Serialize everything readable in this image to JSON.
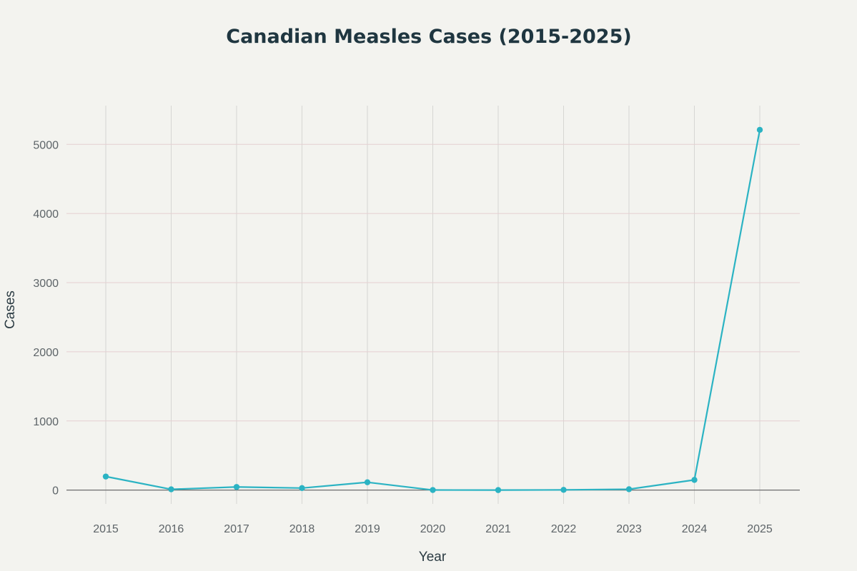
{
  "chart_data": {
    "type": "line",
    "title": "Canadian Measles Cases (2015-2025)",
    "xlabel": "Year",
    "ylabel": "Cases",
    "x": [
      "2015",
      "2016",
      "2017",
      "2018",
      "2019",
      "2020",
      "2021",
      "2022",
      "2023",
      "2024",
      "2025"
    ],
    "series": [
      {
        "name": "Cases",
        "values": [
          196,
          11,
          45,
          29,
          113,
          1,
          0,
          3,
          12,
          147,
          5210
        ],
        "color": "#2bb3c3"
      }
    ],
    "ylim": [
      -200,
      5560
    ],
    "yticks": [
      0,
      1000,
      2000,
      3000,
      4000,
      5000
    ],
    "ytick_labels": [
      "0",
      "1000",
      "2000",
      "3000",
      "4000",
      "5000"
    ],
    "grid": true,
    "colors": {
      "background": "#f3f3ef",
      "grid_vertical": "#d6d6d3",
      "grid_horizontal": "#e5cfd1",
      "zero_line": "#6d6d6d",
      "line": "#2bb3c3"
    }
  }
}
